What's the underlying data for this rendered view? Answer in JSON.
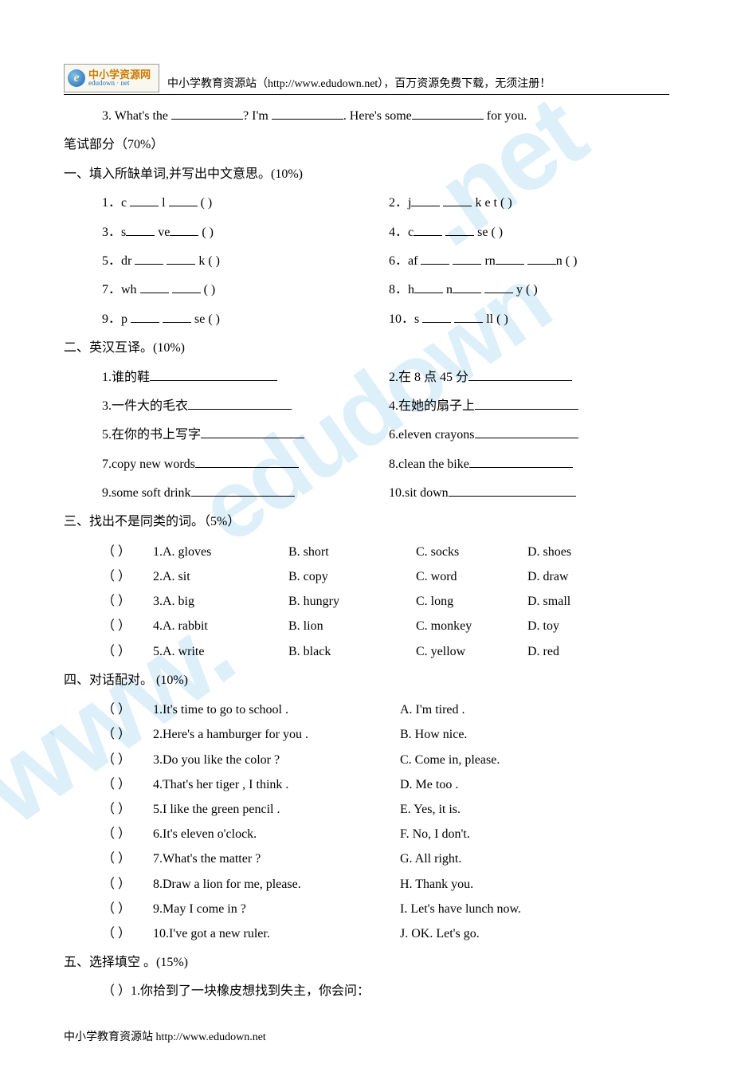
{
  "logo": {
    "cn": "中小学资源网",
    "en": "edudown · net"
  },
  "header_text": "中小学教育资源站（http://www.edudown.net），百万资源免费下载，无须注册！",
  "watermark_text": "www.edudown.net",
  "top_line": {
    "prefix": "3. What's the ",
    "mid1": "? I'm ",
    "mid2": ". Here's some",
    "suffix": " for you."
  },
  "written_header": "笔试部分（70%）",
  "sec1": {
    "title": "一、填入所缺单词,并写出中文意思。(10%)",
    "items": [
      {
        "n": "1．",
        "pre": "c ",
        "mid": " l ",
        "post": "",
        "paren": "(          )"
      },
      {
        "n": "2．",
        "pre": "j",
        "mid": " ",
        "post": " k e t",
        "paren": "(          )"
      },
      {
        "n": "3．",
        "pre": "s",
        "mid": " ve",
        "post": "",
        "paren": "(          )"
      },
      {
        "n": "4．",
        "pre": "c",
        "mid": " ",
        "post": " se",
        "paren": "(          )"
      },
      {
        "n": "5．",
        "pre": "dr ",
        "mid": " ",
        "post": " k",
        "paren": "(          )"
      },
      {
        "n": "6．",
        "pre": "af ",
        "mid": " ",
        "post": " rn",
        "post2": " ",
        "post3": "n",
        "paren": "(          )"
      },
      {
        "n": "7．",
        "pre": "wh ",
        "mid": " ",
        "post": "",
        "paren": "(          )"
      },
      {
        "n": "8．",
        "pre": "h",
        "mid": " n",
        "post": " ",
        "post2": " y",
        "paren": "(          )"
      },
      {
        "n": "9．",
        "pre": "p ",
        "mid": " ",
        "post": " se",
        "paren": "(          )"
      },
      {
        "n": "10．",
        "pre": "s ",
        "mid": " ",
        "post": " ll",
        "paren": "(          )"
      }
    ]
  },
  "sec2": {
    "title": "二、英汉互译。(10%)",
    "items": [
      "1.谁的鞋",
      "2.在 8 点 45 分",
      "3.一件大的毛衣",
      "4.在她的扇子上",
      "5.在你的书上写字",
      "6.eleven crayons",
      "7.copy new words",
      "8.clean the bike",
      "9.some soft drink",
      "10.sit down"
    ]
  },
  "sec3": {
    "title": "三、找出不是同类的词。（5%）",
    "rows": [
      {
        "a": "1.A. gloves",
        "b": "B. short",
        "c": "C. socks",
        "d": "D. shoes"
      },
      {
        "a": "2.A. sit",
        "b": "B. copy",
        "c": "C. word",
        "d": "D. draw"
      },
      {
        "a": "3.A. big",
        "b": "B. hungry",
        "c": "C. long",
        "d": "D. small"
      },
      {
        "a": "4.A. rabbit",
        "b": "B. lion",
        "c": "C. monkey",
        "d": "D. toy"
      },
      {
        "a": "5.A. write",
        "b": "B. black",
        "c": "C. yellow",
        "d": "D. red"
      }
    ]
  },
  "sec4": {
    "title": "四、对话配对。 (10%)",
    "rows": [
      {
        "l": "1.It's time to go to school   .",
        "r": "A. I'm tired ."
      },
      {
        "l": "2.Here's a hamburger for you .",
        "r": "B. How nice."
      },
      {
        "l": "3.Do you like the color ?",
        "r": "C. Come in, please."
      },
      {
        "l": "4.That's her tiger , I think .",
        "r": "D. Me too ."
      },
      {
        "l": "5.I like the green pencil .",
        "r": "E. Yes, it is."
      },
      {
        "l": "6.It's eleven o'clock.",
        "r": "F. No, I don't."
      },
      {
        "l": "7.What's the matter ?",
        "r": "G. All right."
      },
      {
        "l": "8.Draw a lion for me, please.",
        "r": "H. Thank you."
      },
      {
        "l": "9.May I come in ?",
        "r": "I. Let's have lunch now."
      },
      {
        "l": "10.I've got a new ruler.",
        "r": "J. OK. Let's go."
      }
    ]
  },
  "sec5": {
    "title": "五、选择填空 。(15%)",
    "q1": "（     ）1.你拾到了一块橡皮想找到失主，你会问："
  },
  "paren_blank": "（     ）",
  "footer": "中小学教育资源站 http://www.edudown.net"
}
